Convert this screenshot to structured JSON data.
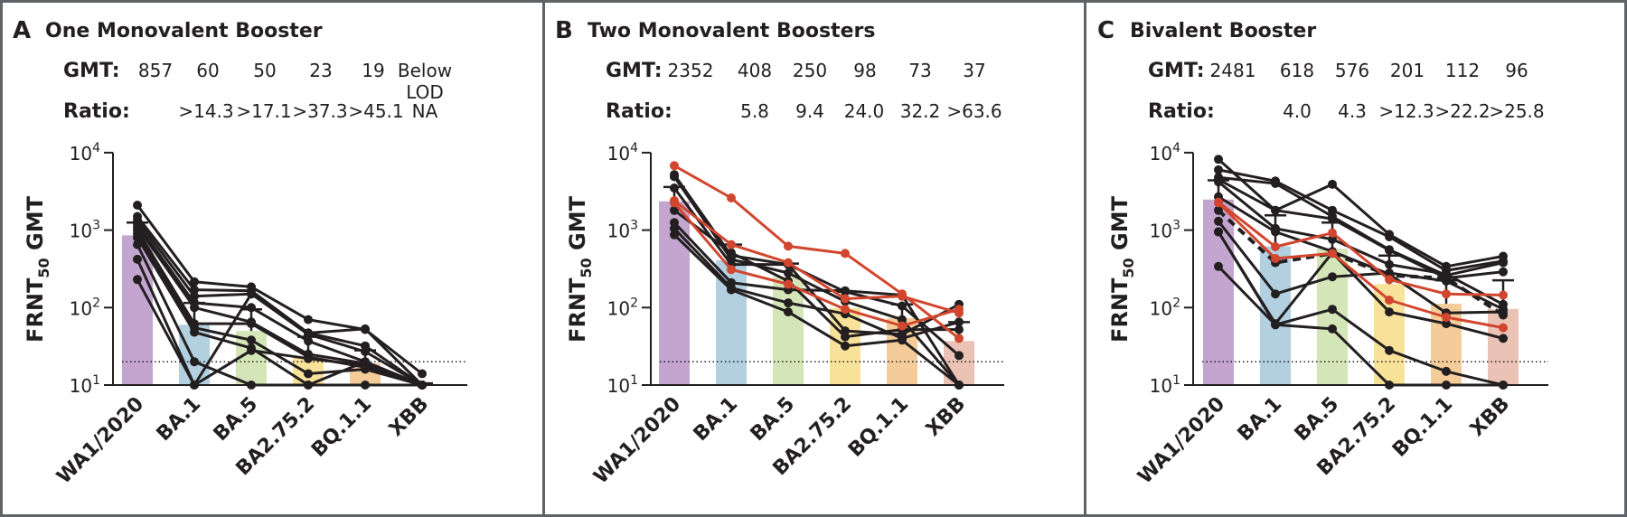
{
  "figure": {
    "y_axis_label": "FRNT",
    "y_axis_label_sub": "50",
    "y_axis_label_suffix": " GMT",
    "gmt_label": "GMT:",
    "ratio_label": "Ratio:",
    "line_color_default": "#231f20",
    "line_color_highlight": "#d2462f",
    "bar_colors": [
      "#c3a5d0",
      "#b2d0e0",
      "#d4e6b8",
      "#f8e29a",
      "#f4cc9a",
      "#eac3b6"
    ]
  },
  "chart_data": [
    {
      "type": "bar",
      "panel_letter": "A",
      "title": "One Monovalent Booster",
      "categories": [
        "WA1/2020",
        "BA.1",
        "BA.5",
        "BA2.75.2",
        "BQ.1.1",
        "XBB"
      ],
      "gmt_text": [
        "857",
        "60",
        "50",
        "23",
        "19",
        "Below LOD"
      ],
      "ratio_text": [
        "",
        ">14.3",
        ">17.1",
        ">37.3",
        ">45.1",
        "NA"
      ],
      "values": [
        857,
        60,
        50,
        23,
        19,
        10
      ],
      "error_upper": [
        1250,
        115,
        95,
        42,
        28,
        10.5
      ],
      "yscale": "log",
      "ylim": [
        10,
        10000
      ],
      "yticks": [
        "10^1",
        "10^2",
        "10^3",
        "10^4"
      ],
      "lod": 20,
      "xlabel": "",
      "ylabel": "FRNT50 GMT",
      "individuals": [
        {
          "values": [
            2100,
            215,
            185,
            70,
            52,
            14
          ],
          "highlight": false,
          "dashed": false
        },
        {
          "values": [
            1500,
            170,
            165,
            47,
            32,
            10
          ],
          "highlight": false,
          "dashed": false
        },
        {
          "values": [
            1350,
            140,
            150,
            45,
            27,
            10
          ],
          "highlight": false,
          "dashed": false
        },
        {
          "values": [
            1200,
            115,
            100,
            37,
            20,
            10
          ],
          "highlight": false,
          "dashed": false
        },
        {
          "values": [
            1100,
            100,
            65,
            25,
            19,
            10
          ],
          "highlight": false,
          "dashed": false
        },
        {
          "values": [
            1000,
            62,
            62,
            23,
            17,
            10
          ],
          "highlight": false,
          "dashed": false
        },
        {
          "values": [
            900,
            55,
            38,
            14,
            16,
            10
          ],
          "highlight": false,
          "dashed": false
        },
        {
          "values": [
            800,
            48,
            30,
            10,
            20,
            10
          ],
          "highlight": false,
          "dashed": false
        },
        {
          "values": [
            650,
            20,
            10,
            10,
            10,
            10
          ],
          "highlight": false,
          "dashed": false
        },
        {
          "values": [
            420,
            10,
            150,
            47,
            53,
            10
          ],
          "highlight": false,
          "dashed": false
        },
        {
          "values": [
            230,
            10,
            28,
            22,
            18,
            10
          ],
          "highlight": false,
          "dashed": false
        }
      ]
    },
    {
      "type": "bar",
      "panel_letter": "B",
      "title": "Two Monovalent Boosters",
      "categories": [
        "WA1/2020",
        "BA.1",
        "BA.5",
        "BA2.75.2",
        "BQ.1.1",
        "XBB"
      ],
      "gmt_text": [
        "2352",
        "408",
        "250",
        "98",
        "73",
        "37"
      ],
      "ratio_text": [
        "",
        "5.8",
        "9.4",
        "24.0",
        "32.2",
        ">63.6"
      ],
      "values": [
        2352,
        408,
        250,
        98,
        73,
        37
      ],
      "error_upper": [
        3600,
        650,
        370,
        160,
        110,
        65
      ],
      "yscale": "log",
      "ylim": [
        10,
        10000
      ],
      "yticks": [
        "10^1",
        "10^2",
        "10^3",
        "10^4"
      ],
      "lod": 20,
      "xlabel": "",
      "ylabel": "FRNT50 GMT",
      "individuals": [
        {
          "values": [
            6800,
            2600,
            620,
            500,
            150,
            40
          ],
          "highlight": true,
          "dashed": false
        },
        {
          "values": [
            2400,
            650,
            380,
            130,
            140,
            85
          ],
          "highlight": true,
          "dashed": false
        },
        {
          "values": [
            2250,
            310,
            200,
            95,
            58,
            95
          ],
          "highlight": true,
          "dashed": false
        },
        {
          "values": [
            5200,
            470,
            360,
            160,
            105,
            24
          ],
          "highlight": false,
          "dashed": false
        },
        {
          "values": [
            4900,
            420,
            280,
            120,
            70,
            10
          ],
          "highlight": false,
          "dashed": false
        },
        {
          "values": [
            3500,
            360,
            360,
            50,
            45,
            110
          ],
          "highlight": false,
          "dashed": false
        },
        {
          "values": [
            1800,
            510,
            220,
            42,
            52,
            52
          ],
          "highlight": false,
          "dashed": false
        },
        {
          "values": [
            1250,
            210,
            170,
            165,
            145,
            10
          ],
          "highlight": false,
          "dashed": false
        },
        {
          "values": [
            1050,
            180,
            115,
            83,
            40,
            65
          ],
          "highlight": false,
          "dashed": false
        },
        {
          "values": [
            870,
            170,
            88,
            32,
            38,
            10
          ],
          "highlight": false,
          "dashed": false
        }
      ]
    },
    {
      "type": "bar",
      "panel_letter": "C",
      "title": "Bivalent Booster",
      "categories": [
        "WA1/2020",
        "BA.1",
        "BA.5",
        "BA2.75.2",
        "BQ.1.1",
        "XBB"
      ],
      "gmt_text": [
        "2481",
        "618",
        "576",
        "201",
        "112",
        "96"
      ],
      "ratio_text": [
        "",
        "4.0",
        "4.3",
        ">12.3",
        ">22.2",
        ">25.8"
      ],
      "values": [
        2481,
        618,
        576,
        201,
        112,
        96
      ],
      "error_upper": [
        4400,
        1550,
        1250,
        470,
        225,
        225
      ],
      "yscale": "log",
      "ylim": [
        10,
        10000
      ],
      "yticks": [
        "10^1",
        "10^2",
        "10^3",
        "10^4"
      ],
      "lod": 20,
      "xlabel": "",
      "ylabel": "FRNT50 GMT",
      "individuals": [
        {
          "values": [
            2300,
            610,
            920,
            230,
            150,
            145
          ],
          "highlight": true,
          "dashed": false
        },
        {
          "values": [
            2250,
            430,
            500,
            125,
            75,
            55
          ],
          "highlight": true,
          "dashed": false
        },
        {
          "values": [
            1800,
            380,
            500,
            260,
            240,
            80
          ],
          "highlight": false,
          "dashed": true
        },
        {
          "values": [
            8200,
            1800,
            3900,
            880,
            340,
            460
          ],
          "highlight": false,
          "dashed": false
        },
        {
          "values": [
            6000,
            4300,
            1800,
            820,
            300,
            400
          ],
          "highlight": false,
          "dashed": false
        },
        {
          "values": [
            4800,
            4000,
            1500,
            560,
            260,
            380
          ],
          "highlight": false,
          "dashed": false
        },
        {
          "values": [
            4500,
            1800,
            1400,
            550,
            240,
            290
          ],
          "highlight": false,
          "dashed": false
        },
        {
          "values": [
            4200,
            1050,
            760,
            360,
            270,
            110
          ],
          "highlight": false,
          "dashed": false
        },
        {
          "values": [
            2700,
            950,
            530,
            270,
            85,
            88
          ],
          "highlight": false,
          "dashed": false
        },
        {
          "values": [
            1300,
            150,
            250,
            280,
            220,
            95
          ],
          "highlight": false,
          "dashed": false
        },
        {
          "values": [
            950,
            62,
            510,
            88,
            62,
            40
          ],
          "highlight": false,
          "dashed": false
        },
        {
          "values": [
            950,
            60,
            95,
            28,
            15,
            10
          ],
          "highlight": false,
          "dashed": false
        },
        {
          "values": [
            340,
            60,
            53,
            10,
            10,
            10
          ],
          "highlight": false,
          "dashed": false
        }
      ]
    }
  ]
}
